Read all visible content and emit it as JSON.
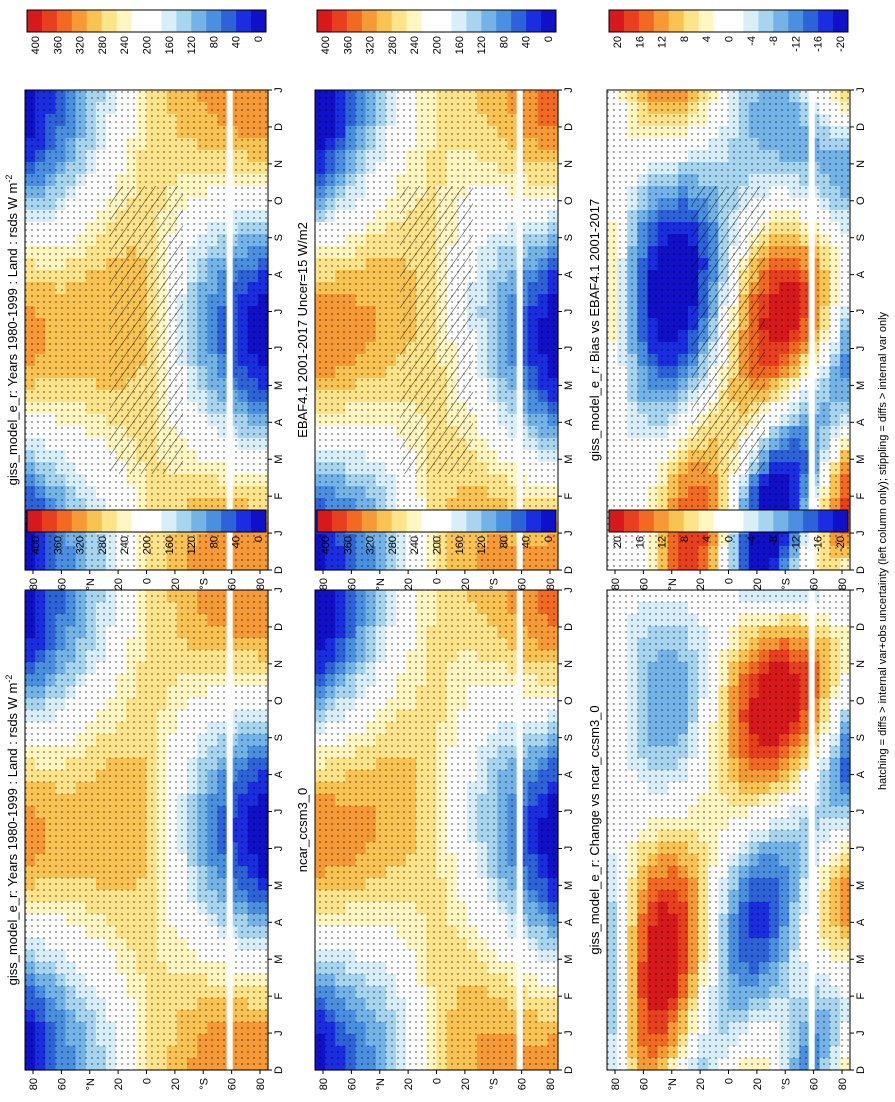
{
  "footer_note": "hatching = diffs > internal var+obs uncertainty (left column only); stippling = diffs > internal var only",
  "month_labels": [
    "D",
    "J",
    "F",
    "M",
    "A",
    "M",
    "J",
    "J",
    "A",
    "S",
    "O",
    "N",
    "D",
    "J"
  ],
  "lat_labels": [
    "80",
    "60",
    "°N",
    "20",
    "0",
    "20",
    "°S",
    "60",
    "80"
  ],
  "colorbars": {
    "flux": {
      "labels": [
        "400",
        "360",
        "320",
        "280",
        "240",
        "200",
        "160",
        "120",
        "80",
        "40",
        "0"
      ],
      "colors": [
        "#d7191c",
        "#e8401e",
        "#f26a22",
        "#f59a36",
        "#f9c354",
        "#fde38a",
        "#fff6c2",
        "#ffffff",
        "#ffffff",
        "#d8eef8",
        "#a7d5f0",
        "#73b3e8",
        "#4a8fe0",
        "#2e62d8",
        "#1a2de0",
        "#1010c8"
      ]
    },
    "diff": {
      "labels": [
        "20",
        "16",
        "12",
        "8",
        "4",
        "0",
        "-4",
        "-8",
        "-12",
        "-16",
        "-20"
      ],
      "colors": [
        "#d7191c",
        "#e8401e",
        "#f26a22",
        "#f59a36",
        "#f9c354",
        "#fde38a",
        "#fff6c2",
        "#ffffff",
        "#ffffff",
        "#d8eef8",
        "#a7d5f0",
        "#73b3e8",
        "#4a8fe0",
        "#2e62d8",
        "#1a2de0",
        "#1010c8"
      ]
    }
  },
  "panels": [
    {
      "id": "p11",
      "title": "giss_model_e_r: Years 1980-1999 : Land : rsds W m",
      "title_sup": "-2",
      "bar": "flux",
      "hatch": true,
      "stipple": true
    },
    {
      "id": "p12",
      "title": "EBAF4.1 2001-2017 Uncer=15 W/m2",
      "title_sup": "",
      "bar": "flux",
      "hatch": true,
      "stipple": true
    },
    {
      "id": "p13",
      "title": "giss_model_e_r: Bias vs EBAF4.1 2001-2017",
      "title_sup": "",
      "bar": "diff",
      "hatch": true,
      "stipple": true
    },
    {
      "id": "p21",
      "title": "giss_model_e_r: Years 1980-1999 : Land : rsds W m",
      "title_sup": "-2",
      "bar": "flux",
      "hatch": false,
      "stipple": true
    },
    {
      "id": "p22",
      "title": "ncar_ccsm3_0",
      "title_sup": "",
      "bar": "flux",
      "hatch": false,
      "stipple": true
    },
    {
      "id": "p23",
      "title": "giss_model_e_r: Change vs ncar_ccsm3_0",
      "title_sup": "",
      "bar": "diff",
      "hatch": false,
      "stipple": true
    }
  ],
  "chart_data": [
    {
      "type": "heatmap",
      "title": "giss_model_e_r: Years 1980-1999 : Land : rsds W m-2",
      "x": "month (Dec–Jan)",
      "y": "latitude (80°S–80°N)",
      "colorbar": "flux",
      "colorbar_range": [
        0,
        400
      ]
    },
    {
      "type": "heatmap",
      "title": "EBAF4.1 2001-2017 Uncer=15 W/m2",
      "colorbar": "flux",
      "colorbar_range": [
        0,
        400
      ]
    },
    {
      "type": "heatmap",
      "title": "giss_model_e_r: Bias vs EBAF4.1 2001-2017",
      "colorbar": "diff",
      "colorbar_range": [
        -20,
        20
      ]
    },
    {
      "type": "heatmap",
      "title": "giss_model_e_r: Years 1980-1999 : Land : rsds W m-2",
      "colorbar": "flux",
      "colorbar_range": [
        0,
        400
      ]
    },
    {
      "type": "heatmap",
      "title": "ncar_ccsm3_0",
      "colorbar": "flux",
      "colorbar_range": [
        0,
        400
      ]
    },
    {
      "type": "heatmap",
      "title": "giss_model_e_r: Change vs ncar_ccsm3_0",
      "colorbar": "diff",
      "colorbar_range": [
        -20,
        20
      ]
    }
  ]
}
